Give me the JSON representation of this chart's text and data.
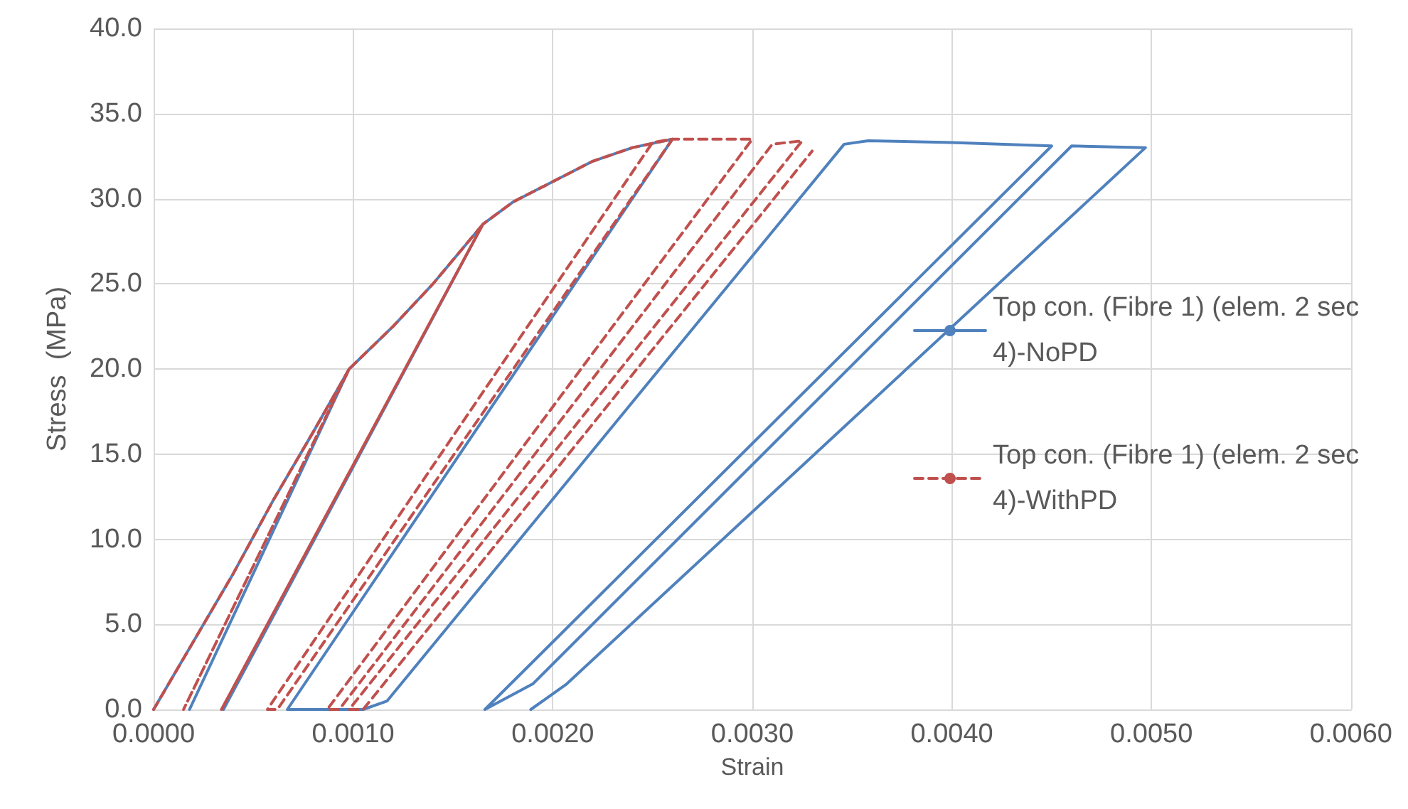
{
  "chart_data": {
    "type": "line",
    "xlabel": "Strain",
    "ylabel": "Stress  (MPa)",
    "xlim": [
      0,
      0.006
    ],
    "ylim": [
      0,
      40
    ],
    "xticks": [
      {
        "value": 0,
        "label": "0.0000"
      },
      {
        "value": 0.001,
        "label": "0.0010"
      },
      {
        "value": 0.002,
        "label": "0.0020"
      },
      {
        "value": 0.003,
        "label": "0.0030"
      },
      {
        "value": 0.004,
        "label": "0.0040"
      },
      {
        "value": 0.005,
        "label": "0.0050"
      },
      {
        "value": 0.006,
        "label": "0.0060"
      }
    ],
    "yticks": [
      {
        "value": 0,
        "label": "0.0"
      },
      {
        "value": 5,
        "label": "5.0"
      },
      {
        "value": 10,
        "label": "10.0"
      },
      {
        "value": 15,
        "label": "15.0"
      },
      {
        "value": 20,
        "label": "20.0"
      },
      {
        "value": 25,
        "label": "25.0"
      },
      {
        "value": 30,
        "label": "30.0"
      },
      {
        "value": 35,
        "label": "35.0"
      },
      {
        "value": 40,
        "label": "40.0"
      }
    ],
    "grid": true,
    "legend": "right",
    "marker": "none",
    "series": [
      {
        "name": "Top con. (Fibre 1) (elem. 2 sec 4)-NoPD",
        "color": "#4f81bd",
        "line_style": "solid",
        "x": [
          0,
          0.0002,
          0.0004,
          0.0006,
          0.0008,
          0.00098,
          0.00018,
          0.00098,
          0.0012,
          0.0014,
          0.00165,
          0.00035,
          0.00165,
          0.0018,
          0.002,
          0.0022,
          0.0024,
          0.0026,
          0.00067,
          0.00105,
          0.00117,
          0.00346,
          0.00358,
          0.004,
          0.0045,
          0.00166,
          0.0019,
          0.0046,
          0.00497,
          0.00207,
          0.00189
        ],
        "values": [
          0,
          4,
          8,
          12.3,
          16.3,
          20,
          0,
          20,
          22.5,
          25,
          28.5,
          0,
          28.5,
          29.8,
          31,
          32.2,
          33,
          33.5,
          0,
          0,
          0.5,
          33.2,
          33.4,
          33.3,
          33.1,
          0,
          1.5,
          33.1,
          33,
          1.5,
          0
        ]
      },
      {
        "name": "Top con. (Fibre 1) (elem. 2 sec 4)-WithPD",
        "color": "#c0504d",
        "line_style": "dashed",
        "x": [
          0,
          0.0002,
          0.0004,
          0.0006,
          0.0008,
          0.00098,
          0.00015,
          0.00098,
          0.0012,
          0.0014,
          0.00165,
          0.00034,
          0.00165,
          0.0018,
          0.002,
          0.0022,
          0.0024,
          0.0026,
          0.00062,
          0.00057,
          0.0025,
          0.0026,
          0.003,
          0.00087,
          0.00093,
          0.0031,
          0.00325,
          0.00098,
          0.00105,
          0.0033
        ],
        "values": [
          0,
          4,
          8,
          12.3,
          16.3,
          20,
          0,
          20,
          22.5,
          25,
          28.5,
          0,
          28.5,
          29.8,
          31,
          32.2,
          33,
          33.5,
          0,
          0,
          33.3,
          33.5,
          33.5,
          0,
          0,
          33.2,
          33.4,
          0,
          0,
          32.8
        ]
      }
    ]
  }
}
